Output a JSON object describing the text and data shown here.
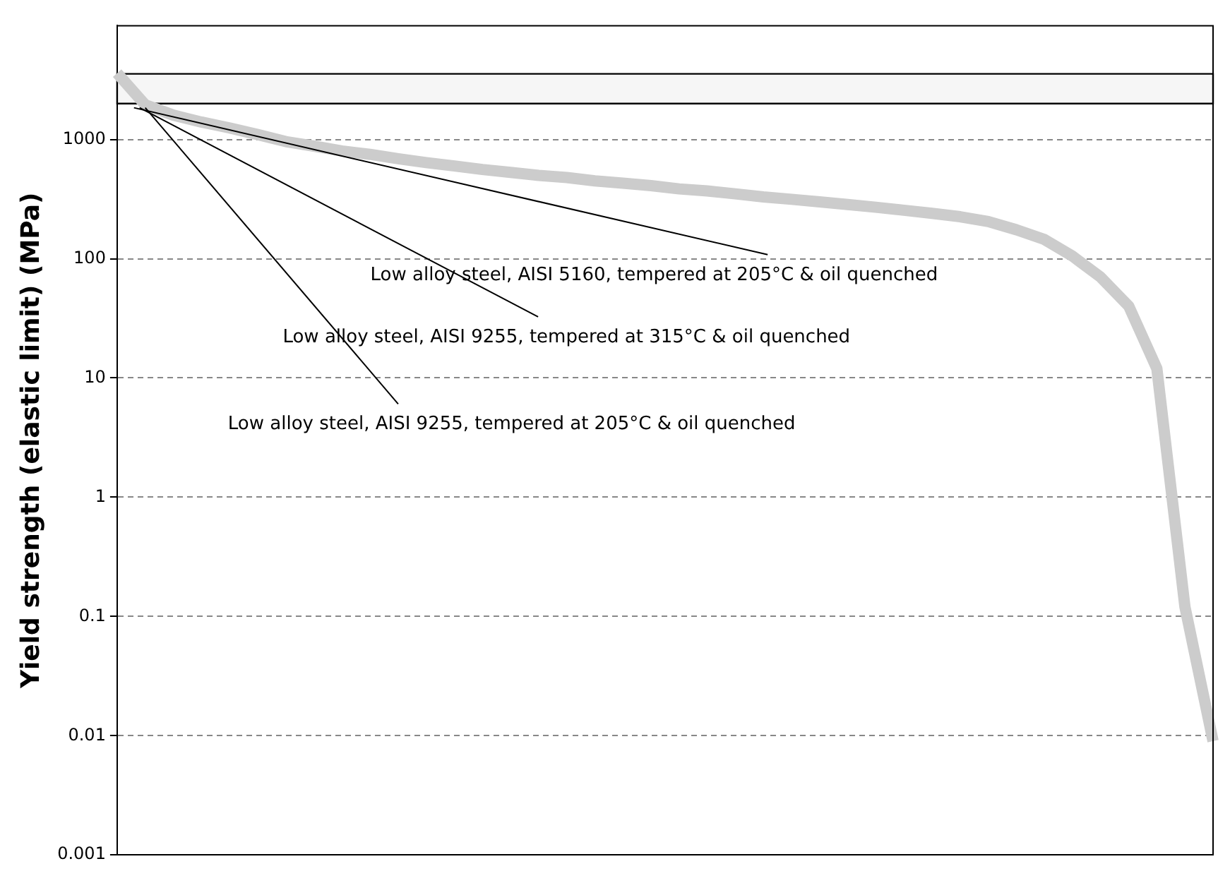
{
  "chart_data": {
    "type": "line",
    "ylabel": "Yield strength (elastic limit) (MPa)",
    "categories": [
      null,
      null,
      null,
      null,
      null,
      null,
      null,
      null,
      null,
      null,
      null,
      null,
      null,
      null,
      null,
      null,
      null,
      null,
      null,
      null,
      null,
      null,
      null,
      null,
      null,
      null,
      null,
      null,
      null,
      null,
      null,
      null,
      null,
      null,
      null,
      null,
      null,
      null,
      null,
      null
    ],
    "series": [
      {
        "color": "#cccccc",
        "values": [
          3600,
          1950,
          1600,
          1400,
          1250,
          1100,
          960,
          880,
          800,
          750,
          690,
          640,
          600,
          560,
          530,
          500,
          480,
          450,
          430,
          410,
          385,
          370,
          350,
          330,
          315,
          300,
          285,
          270,
          255,
          240,
          225,
          205,
          175,
          145,
          105,
          70,
          40,
          12,
          0.12,
          0.009
        ]
      }
    ],
    "log": "y",
    "ylim": [
      0.001,
      9000
    ],
    "yticks": [
      0.001,
      0.01,
      0.1,
      1,
      10,
      100,
      1000
    ],
    "grid": "y",
    "legend": false,
    "marker": "none",
    "bands": [
      {
        "axis": "y",
        "from": 2000,
        "to": 3550
      }
    ],
    "annotations": [
      "Low alloy steel, AISI 5160, tempered at 205°C & oil quenched",
      "Low alloy steel, AISI 9255, tempered at 315°C & oil quenched",
      "Low alloy steel, AISI 9255, tempered at 205°C & oil quenched"
    ]
  }
}
